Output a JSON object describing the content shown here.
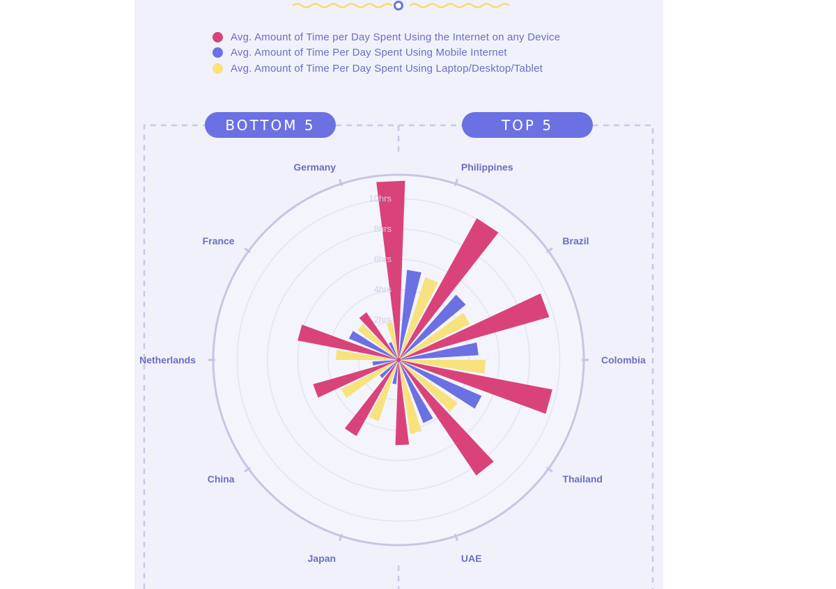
{
  "colors": {
    "any_device": "#d9437a",
    "mobile": "#6b70e3",
    "laptop": "#f7e27e",
    "accent": "#6b70e3",
    "label": "#6a6fbf",
    "ring": "#c5c6e2",
    "panel": "#f0f1fb"
  },
  "groups": {
    "bottom_label": "BOTTOM 5",
    "top_label": "TOP 5"
  },
  "chart_data": {
    "type": "bar",
    "subtype": "radial",
    "title": "",
    "axis_unit": "hrs",
    "rlim": [
      0,
      10
    ],
    "tick_labels": [
      "2hrs",
      "4hrs",
      "6hrs",
      "8hrs",
      "10hrs"
    ],
    "tick_values": [
      2,
      4,
      6,
      8,
      10
    ],
    "legend_position": "top",
    "categories": [
      "Philippines",
      "Brazil",
      "Colombia",
      "Thailand",
      "UAE",
      "Japan",
      "China",
      "Netherlands",
      "France",
      "Germany"
    ],
    "series": [
      {
        "name": "Avg. Amount of Time per Day Spent Using the Internet on any Device",
        "color_key": "any_device",
        "values": [
          10.3,
          9.3,
          9.0,
          9.0,
          8.0,
          4.9,
          5.0,
          5.1,
          5.9,
          3.3
        ]
      },
      {
        "name": "Avg. Amount of Time Per Day Spent Using Mobile Internet",
        "color_key": "mobile",
        "values": [
          5.2,
          5.0,
          4.6,
          5.2,
          3.9,
          1.4,
          1.4,
          1.5,
          3.1,
          1.1
        ]
      },
      {
        "name": "Avg. Amount of Time Per Day Spent Using Laptop/Desktop/Tablet",
        "color_key": "laptop",
        "values": [
          5.0,
          4.6,
          5.0,
          4.2,
          4.3,
          3.7,
          3.7,
          3.6,
          2.9,
          2.2
        ]
      }
    ]
  }
}
